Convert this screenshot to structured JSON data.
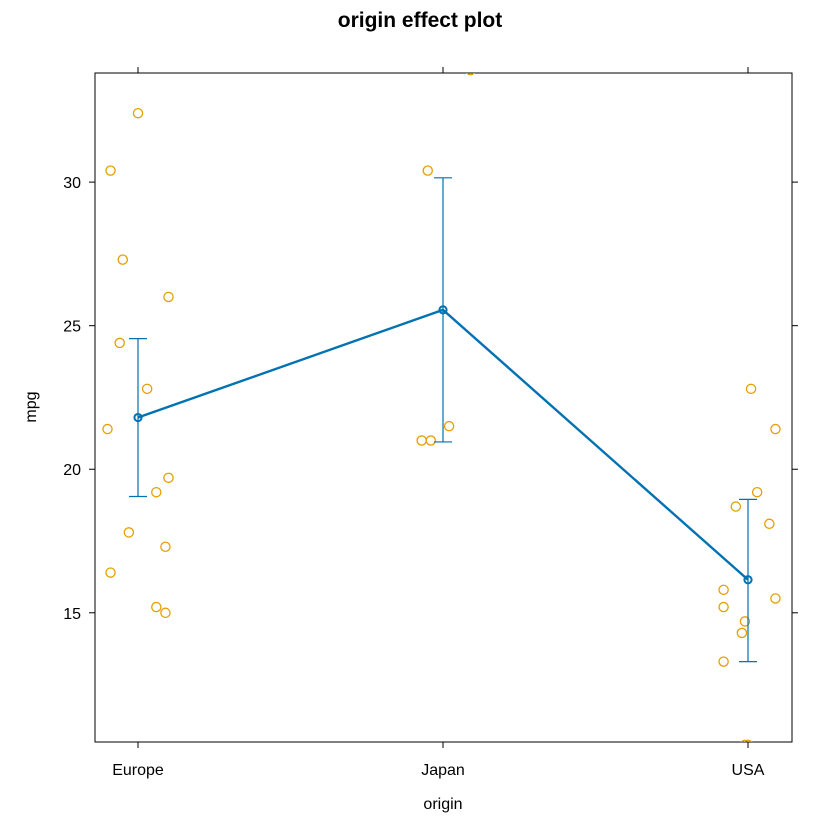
{
  "colors": {
    "effect_line": "#0072B2",
    "partial_residuals": "#E69F00",
    "frame": "#000000"
  },
  "chart_data": {
    "type": "line",
    "title": "origin effect plot",
    "xlabel": "origin",
    "ylabel": "mpg",
    "categories": [
      "Europe",
      "Japan",
      "USA"
    ],
    "ylim": [
      10.5,
      33.8
    ],
    "yticks": [
      15,
      20,
      25,
      30
    ],
    "grid": false,
    "legend": "none",
    "series": [
      {
        "values": [
          21.8,
          25.55,
          16.15
        ],
        "lower": [
          19.05,
          20.95,
          13.3
        ],
        "upper": [
          24.55,
          30.15,
          18.95
        ]
      }
    ],
    "points": [
      {
        "category": "Europe",
        "offset": -0.09,
        "y": 30.4
      },
      {
        "category": "Europe",
        "offset": 0.0,
        "y": 32.4
      },
      {
        "category": "Europe",
        "offset": -0.05,
        "y": 27.3
      },
      {
        "category": "Europe",
        "offset": 0.1,
        "y": 26.0
      },
      {
        "category": "Europe",
        "offset": -0.06,
        "y": 24.4
      },
      {
        "category": "Europe",
        "offset": 0.03,
        "y": 22.8
      },
      {
        "category": "Europe",
        "offset": -0.1,
        "y": 21.4
      },
      {
        "category": "Europe",
        "offset": 0.1,
        "y": 19.7
      },
      {
        "category": "Europe",
        "offset": 0.06,
        "y": 19.2
      },
      {
        "category": "Europe",
        "offset": -0.03,
        "y": 17.8
      },
      {
        "category": "Europe",
        "offset": 0.09,
        "y": 17.3
      },
      {
        "category": "Europe",
        "offset": -0.09,
        "y": 16.4
      },
      {
        "category": "Europe",
        "offset": 0.06,
        "y": 15.2
      },
      {
        "category": "Europe",
        "offset": 0.09,
        "y": 15.0
      },
      {
        "category": "Japan",
        "offset": 0.09,
        "y": 33.9
      },
      {
        "category": "Japan",
        "offset": -0.05,
        "y": 30.4
      },
      {
        "category": "Japan",
        "offset": 0.02,
        "y": 21.5
      },
      {
        "category": "Japan",
        "offset": -0.07,
        "y": 21.0
      },
      {
        "category": "Japan",
        "offset": -0.04,
        "y": 21.0
      },
      {
        "category": "USA",
        "offset": 0.01,
        "y": 22.8
      },
      {
        "category": "USA",
        "offset": 0.09,
        "y": 21.4
      },
      {
        "category": "USA",
        "offset": 0.03,
        "y": 19.2
      },
      {
        "category": "USA",
        "offset": -0.04,
        "y": 18.7
      },
      {
        "category": "USA",
        "offset": 0.07,
        "y": 18.1
      },
      {
        "category": "USA",
        "offset": -0.08,
        "y": 15.8
      },
      {
        "category": "USA",
        "offset": 0.09,
        "y": 15.5
      },
      {
        "category": "USA",
        "offset": -0.08,
        "y": 15.2
      },
      {
        "category": "USA",
        "offset": -0.01,
        "y": 14.7
      },
      {
        "category": "USA",
        "offset": -0.02,
        "y": 14.3
      },
      {
        "category": "USA",
        "offset": -0.08,
        "y": 13.3
      },
      {
        "category": "USA",
        "offset": -0.01,
        "y": 10.4
      },
      {
        "category": "USA",
        "offset": 0.0,
        "y": 10.4
      }
    ]
  }
}
